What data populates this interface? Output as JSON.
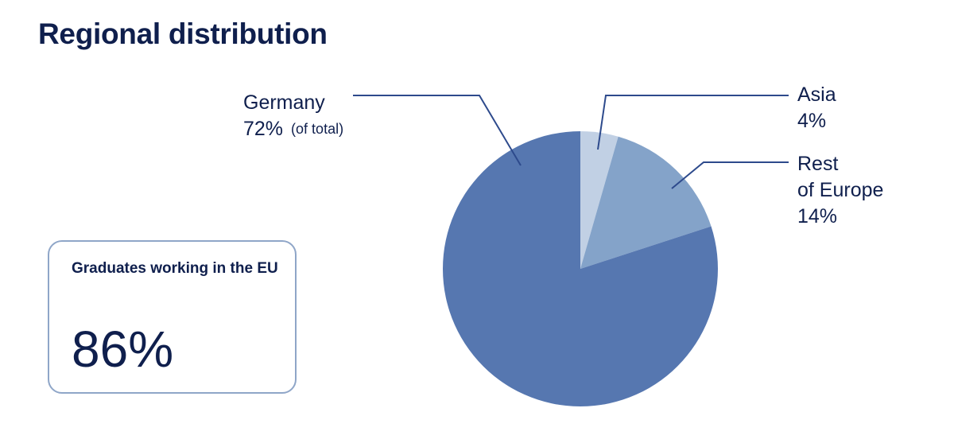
{
  "title": "Regional distribution",
  "kpi": {
    "label": "Graduates working in the EU",
    "value": "86%"
  },
  "colors": {
    "germany": "#5677b0",
    "rest_of_europe": "#84a3c9",
    "asia": "#c1d0e4",
    "leader": "#2d4a8c",
    "text": "#0f1f4d",
    "card_border": "#8fa6c8"
  },
  "chart_data": {
    "type": "pie",
    "title": "Regional distribution",
    "start_angle": "12 o'clock, clockwise",
    "slices": [
      {
        "name": "Asia",
        "value": 4,
        "label_lines": [
          "Asia",
          "4%"
        ],
        "color": "#c1d0e4"
      },
      {
        "name": "Rest of Europe",
        "value": 14,
        "label_lines": [
          "Rest",
          "of Europe",
          "14%"
        ],
        "color": "#84a3c9"
      },
      {
        "name": "Germany",
        "value": 72,
        "label_lines": [
          "Germany",
          "72%"
        ],
        "label_note": "(of total)",
        "color": "#5677b0"
      }
    ]
  }
}
